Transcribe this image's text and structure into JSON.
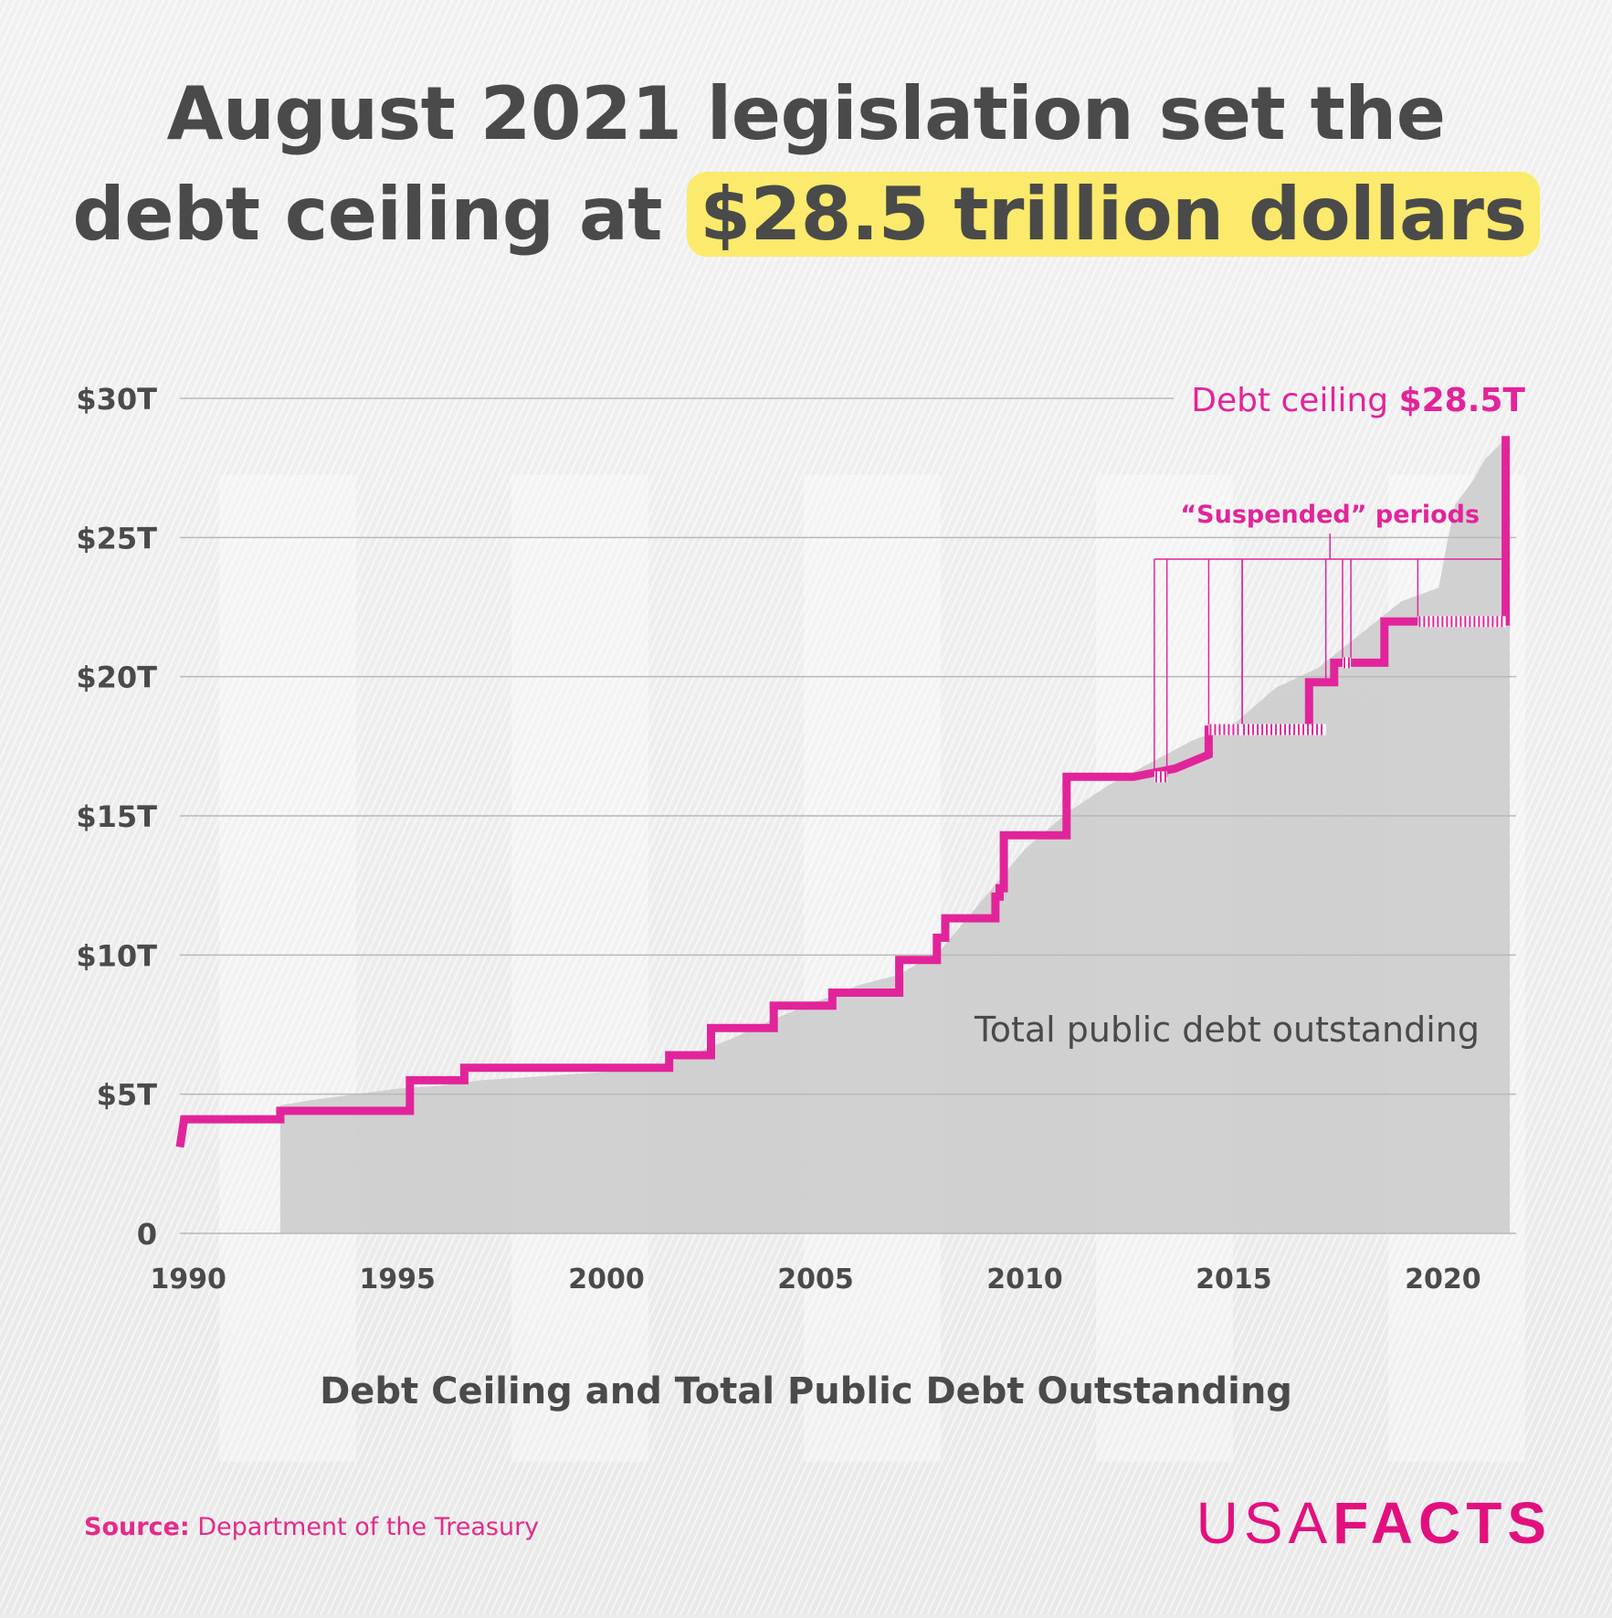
{
  "headline": {
    "line1": "August 2021 legislation set the",
    "line2_prefix": "debt ceiling at ",
    "line2_highlight": "$28.5 trillion dollars"
  },
  "colors": {
    "ceiling": "#e2249a",
    "debt_area": "#cfcfcf",
    "grid": "#bdbdbd",
    "text": "#4a4a4a",
    "highlight": "#fbea6b"
  },
  "chart_data": {
    "type": "line",
    "title": "Debt Ceiling and Total Public Debt Outstanding",
    "xlabel": "",
    "ylabel": "",
    "xlim": [
      1989.8,
      2021.75
    ],
    "ylim": [
      0,
      30
    ],
    "y_unit": "trillion dollars",
    "grid": true,
    "y_ticks": [
      {
        "value": 0,
        "label": "0"
      },
      {
        "value": 5,
        "label": "$5T"
      },
      {
        "value": 10,
        "label": "$10T"
      },
      {
        "value": 15,
        "label": "$15T"
      },
      {
        "value": 20,
        "label": "$20T"
      },
      {
        "value": 25,
        "label": "$25T"
      },
      {
        "value": 30,
        "label": "$30T"
      }
    ],
    "x_ticks": [
      {
        "value": 1990,
        "label": "1990"
      },
      {
        "value": 1995,
        "label": "1995"
      },
      {
        "value": 2000,
        "label": "2000"
      },
      {
        "value": 2005,
        "label": "2005"
      },
      {
        "value": 2010,
        "label": "2010"
      },
      {
        "value": 2015,
        "label": "2015"
      },
      {
        "value": 2020,
        "label": "2020"
      }
    ],
    "series": [
      {
        "name": "Debt ceiling",
        "kind": "step",
        "color": "#e2249a",
        "points": [
          [
            1989.8,
            3.1
          ],
          [
            1989.9,
            4.1
          ],
          [
            1992.2,
            4.1
          ],
          [
            1992.2,
            4.4
          ],
          [
            1995.3,
            4.4
          ],
          [
            1995.3,
            5.5
          ],
          [
            1996.6,
            5.5
          ],
          [
            1996.6,
            5.95
          ],
          [
            2001.5,
            5.95
          ],
          [
            2001.5,
            6.4
          ],
          [
            2002.5,
            6.4
          ],
          [
            2002.5,
            7.38
          ],
          [
            2004.0,
            7.38
          ],
          [
            2004.0,
            8.18
          ],
          [
            2005.4,
            8.18
          ],
          [
            2005.4,
            8.65
          ],
          [
            2007.0,
            8.65
          ],
          [
            2007.0,
            9.82
          ],
          [
            2007.9,
            9.82
          ],
          [
            2007.9,
            10.62
          ],
          [
            2008.1,
            10.62
          ],
          [
            2008.1,
            11.32
          ],
          [
            2009.3,
            11.32
          ],
          [
            2009.3,
            12.1
          ],
          [
            2009.4,
            12.1
          ],
          [
            2009.4,
            12.4
          ],
          [
            2009.5,
            12.4
          ],
          [
            2009.5,
            14.3
          ],
          [
            2011.0,
            14.3
          ],
          [
            2011.0,
            16.4
          ],
          [
            2012.6,
            16.4
          ],
          [
            2013.6,
            16.7
          ],
          [
            2014.4,
            17.2
          ],
          [
            2014.4,
            18.1
          ],
          [
            2015.2,
            18.1
          ],
          [
            2016.8,
            18.1
          ],
          [
            2016.8,
            19.8
          ],
          [
            2017.4,
            19.8
          ],
          [
            2017.4,
            20.5
          ],
          [
            2018.6,
            20.5
          ],
          [
            2018.6,
            21.98
          ],
          [
            2019.4,
            21.98
          ],
          [
            2021.5,
            21.98
          ],
          [
            2021.5,
            28.5
          ],
          [
            2021.6,
            28.5
          ]
        ]
      },
      {
        "name": "Total public debt outstanding",
        "kind": "area",
        "color": "#cfcfcf",
        "points": [
          [
            1992.2,
            4.6
          ],
          [
            1993,
            4.8
          ],
          [
            1994,
            5.0
          ],
          [
            1995,
            5.2
          ],
          [
            1996,
            5.3
          ],
          [
            1997,
            5.5
          ],
          [
            1998,
            5.6
          ],
          [
            1999,
            5.7
          ],
          [
            2000,
            5.8
          ],
          [
            2001,
            5.9
          ],
          [
            2002,
            6.4
          ],
          [
            2003,
            7.0
          ],
          [
            2004,
            7.7
          ],
          [
            2005,
            8.3
          ],
          [
            2006,
            8.9
          ],
          [
            2007,
            9.3
          ],
          [
            2008,
            10.2
          ],
          [
            2009,
            12.0
          ],
          [
            2010,
            13.8
          ],
          [
            2011,
            15.1
          ],
          [
            2012,
            16.1
          ],
          [
            2013,
            16.9
          ],
          [
            2014,
            17.7
          ],
          [
            2015,
            18.3
          ],
          [
            2016,
            19.6
          ],
          [
            2017,
            20.3
          ],
          [
            2018,
            21.5
          ],
          [
            2019,
            22.7
          ],
          [
            2019.9,
            23.2
          ],
          [
            2020.1,
            24.8
          ],
          [
            2020.3,
            26.2
          ],
          [
            2020.7,
            27.0
          ],
          [
            2021.0,
            27.8
          ],
          [
            2021.4,
            28.4
          ],
          [
            2021.6,
            28.5
          ]
        ]
      }
    ],
    "suspended_periods": [
      [
        2013.1,
        2013.4
      ],
      [
        2014.4,
        2015.2
      ],
      [
        2015.2,
        2017.2
      ],
      [
        2017.6,
        2017.8
      ],
      [
        2019.4,
        2021.5
      ]
    ],
    "annotations": {
      "suspended_label": "“Suspended” periods",
      "ceiling_label_prefix": "Debt ceiling ",
      "ceiling_label_value": "$28.5T",
      "area_label": "Total public debt outstanding"
    }
  },
  "caption": "Debt Ceiling and Total Public Debt Outstanding",
  "source": {
    "label": "Source:",
    "text": "Department of the Treasury"
  },
  "logo": {
    "part1": "USA",
    "part2": "FACTS"
  }
}
